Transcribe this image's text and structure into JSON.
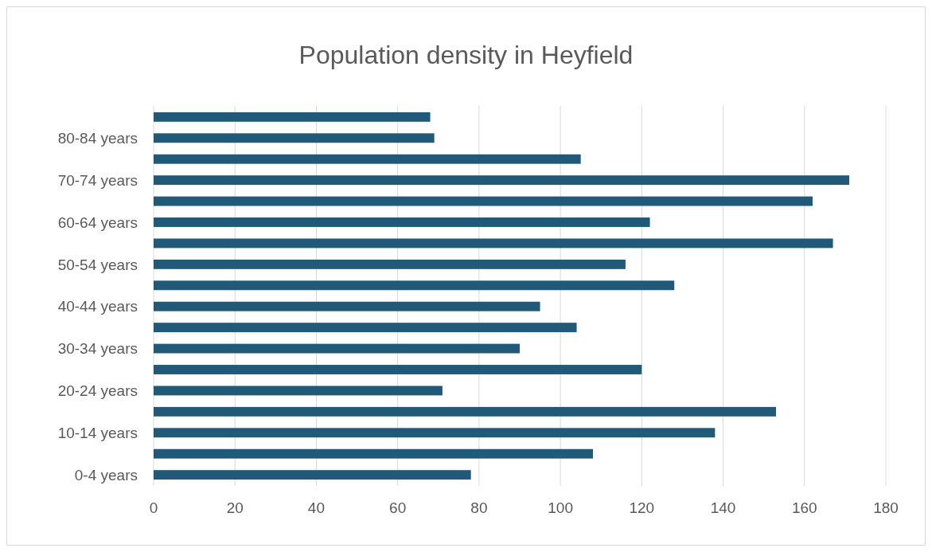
{
  "chart_data": {
    "type": "bar",
    "orientation": "horizontal",
    "title": "Population density in Heyfield",
    "categories": [
      null,
      "80-84 years",
      null,
      "70-74 years",
      null,
      "60-64 years",
      null,
      "50-54 years",
      null,
      "40-44 years",
      null,
      "30-34 years",
      null,
      "20-24 years",
      null,
      "10-14 years",
      null,
      "0-4 years"
    ],
    "values": [
      68,
      69,
      105,
      171,
      162,
      122,
      167,
      116,
      128,
      95,
      104,
      90,
      120,
      71,
      153,
      138,
      108,
      78
    ],
    "color": "#215a79",
    "xlim": [
      0,
      180
    ],
    "xticks": [
      0,
      20,
      40,
      60,
      80,
      100,
      120,
      140,
      160,
      180
    ],
    "grid": "x"
  }
}
